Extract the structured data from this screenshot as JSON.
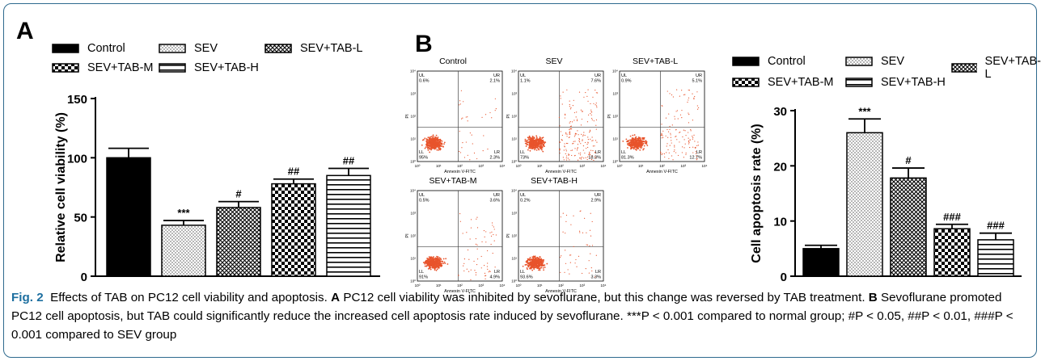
{
  "panels": {
    "a": "A",
    "b": "B"
  },
  "legend": [
    "Control",
    "SEV",
    "SEV+TAB-L",
    "SEV+TAB-M",
    "SEV+TAB-H"
  ],
  "chart_data": [
    {
      "type": "bar",
      "panel": "A",
      "categories": [
        "Control",
        "SEV",
        "SEV+TAB-L",
        "SEV+TAB-M",
        "SEV+TAB-H"
      ],
      "values": [
        100,
        43,
        58,
        78,
        85
      ],
      "errors": [
        8,
        4,
        5,
        4,
        6
      ],
      "annotations": [
        "",
        "***",
        "#",
        "##",
        "##"
      ],
      "ylabel": "Relative cell viability (%)",
      "ylim": [
        0,
        150
      ],
      "yticks": [
        "0",
        "50",
        "100",
        "150"
      ]
    },
    {
      "type": "scatter",
      "panel": "B",
      "description_kind": "flow-cytometry",
      "xlabel": "Annexin V-FITC",
      "ylabel": "PI",
      "plots": [
        {
          "title": "Control",
          "UL": "0.6%",
          "UR": "2.1%",
          "LL": "95%",
          "LR": "2.3%"
        },
        {
          "title": "SEV",
          "UL": "1.1%",
          "UR": "7.6%",
          "LL": "73%",
          "LR": "18.3%"
        },
        {
          "title": "SEV+TAB-L",
          "UL": "0.9%",
          "UR": "5.1%",
          "LL": "81.3%",
          "LR": "12.7%"
        },
        {
          "title": "SEV+TAB-M",
          "UL": "0.5%",
          "UR": "3.6%",
          "LL": "91%",
          "LR": "4.9%"
        },
        {
          "title": "SEV+TAB-H",
          "UL": "0.2%",
          "UR": "2.9%",
          "LL": "93.6%",
          "LR": "3.3%"
        }
      ]
    },
    {
      "type": "bar",
      "panel": "B",
      "categories": [
        "Control",
        "SEV",
        "SEV+TAB-L",
        "SEV+TAB-M",
        "SEV+TAB-H"
      ],
      "values": [
        5,
        26,
        17.8,
        8.6,
        6.6
      ],
      "errors": [
        0.6,
        2.5,
        1.8,
        0.8,
        1.2
      ],
      "annotations": [
        "",
        "***",
        "#",
        "###",
        "###"
      ],
      "ylabel": "Cell apoptosis rate (%)",
      "ylim": [
        0,
        30
      ],
      "yticks": [
        "0",
        "10",
        "20",
        "30"
      ]
    }
  ],
  "caption": {
    "fig": "Fig. 2",
    "text_1": "Effects of TAB on PC12 cell viability and apoptosis.",
    "a": "A",
    "text_2": "PC12 cell viability was inhibited by sevoflurane, but this change was reversed by TAB treatment.",
    "b": "B",
    "text_3": "Sevoflurane promoted PC12 cell apoptosis, but TAB could significantly reduce the increased cell apoptosis rate induced by sevoflurane.",
    "stats": "***P < 0.001 compared to normal group; #P < 0.05, ##P < 0.01, ###P < 0.001 compared to SEV group"
  },
  "colors": {
    "frame": "#2e6a8e",
    "fig_label": "#1d6fa0",
    "dots": "#e8542c",
    "bar": "#000000"
  }
}
